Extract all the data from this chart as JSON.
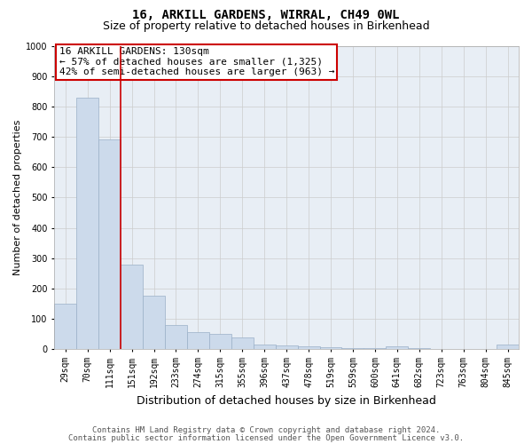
{
  "title": "16, ARKILL GARDENS, WIRRAL, CH49 0WL",
  "subtitle": "Size of property relative to detached houses in Birkenhead",
  "xlabel": "Distribution of detached houses by size in Birkenhead",
  "ylabel": "Number of detached properties",
  "bar_color": "#ccdaeb",
  "bar_edge_color": "#9ab0c8",
  "bar_width": 1.0,
  "grid_color": "#cccccc",
  "background_color": "#ffffff",
  "plot_bg_color": "#e8eef5",
  "annotation_box_color": "#cc0000",
  "vline_color": "#cc0000",
  "bins": [
    "29sqm",
    "70sqm",
    "111sqm",
    "151sqm",
    "192sqm",
    "233sqm",
    "274sqm",
    "315sqm",
    "355sqm",
    "396sqm",
    "437sqm",
    "478sqm",
    "519sqm",
    "559sqm",
    "600sqm",
    "641sqm",
    "682sqm",
    "723sqm",
    "763sqm",
    "804sqm",
    "845sqm"
  ],
  "values": [
    150,
    830,
    690,
    280,
    175,
    80,
    55,
    50,
    40,
    15,
    12,
    10,
    8,
    5,
    5,
    10,
    5,
    1,
    1,
    1,
    15
  ],
  "vline_position": 2.5,
  "annotation_line1": "16 ARKILL GARDENS: 130sqm",
  "annotation_line2": "← 57% of detached houses are smaller (1,325)",
  "annotation_line3": "42% of semi-detached houses are larger (963) →",
  "ylim": [
    0,
    1000
  ],
  "yticks": [
    0,
    100,
    200,
    300,
    400,
    500,
    600,
    700,
    800,
    900,
    1000
  ],
  "footer_line1": "Contains HM Land Registry data © Crown copyright and database right 2024.",
  "footer_line2": "Contains public sector information licensed under the Open Government Licence v3.0.",
  "title_fontsize": 10,
  "subtitle_fontsize": 9,
  "xlabel_fontsize": 9,
  "ylabel_fontsize": 8,
  "tick_fontsize": 7,
  "annotation_fontsize": 8,
  "footer_fontsize": 6.5
}
